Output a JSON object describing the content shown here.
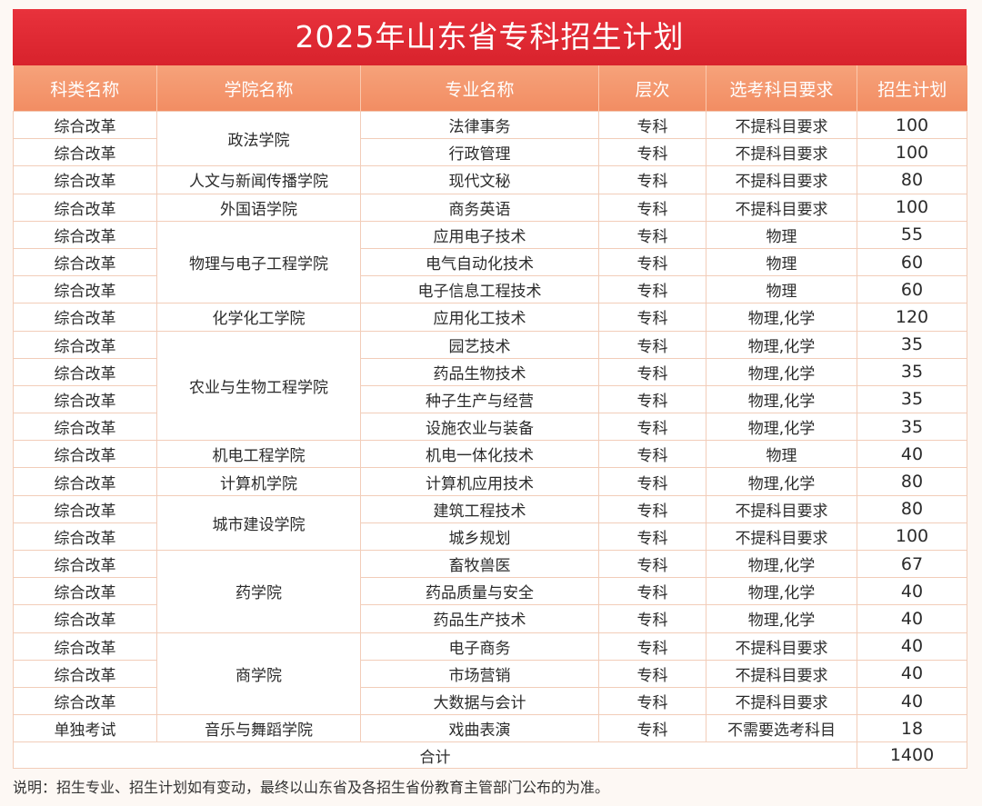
{
  "title": "2025年山东省专科招生计划",
  "headers": [
    "科类名称",
    "学院名称",
    "专业名称",
    "层次",
    "选考科目要求",
    "招生计划"
  ],
  "rows": [
    {
      "category": "综合改革",
      "college": "政法学院",
      "major": "法律事务",
      "level": "专科",
      "requirement": "不提科目要求",
      "plan": "100"
    },
    {
      "category": "综合改革",
      "college": "政法学院",
      "major": "行政管理",
      "level": "专科",
      "requirement": "不提科目要求",
      "plan": "100"
    },
    {
      "category": "综合改革",
      "college": "人文与新闻传播学院",
      "major": "现代文秘",
      "level": "专科",
      "requirement": "不提科目要求",
      "plan": "80"
    },
    {
      "category": "综合改革",
      "college": "外国语学院",
      "major": "商务英语",
      "level": "专科",
      "requirement": "不提科目要求",
      "plan": "100"
    },
    {
      "category": "综合改革",
      "college": "物理与电子工程学院",
      "major": "应用电子技术",
      "level": "专科",
      "requirement": "物理",
      "plan": "55"
    },
    {
      "category": "综合改革",
      "college": "物理与电子工程学院",
      "major": "电气自动化技术",
      "level": "专科",
      "requirement": "物理",
      "plan": "60"
    },
    {
      "category": "综合改革",
      "college": "物理与电子工程学院",
      "major": "电子信息工程技术",
      "level": "专科",
      "requirement": "物理",
      "plan": "60"
    },
    {
      "category": "综合改革",
      "college": "化学化工学院",
      "major": "应用化工技术",
      "level": "专科",
      "requirement": "物理,化学",
      "plan": "120"
    },
    {
      "category": "综合改革",
      "college": "农业与生物工程学院",
      "major": "园艺技术",
      "level": "专科",
      "requirement": "物理,化学",
      "plan": "35"
    },
    {
      "category": "综合改革",
      "college": "农业与生物工程学院",
      "major": "药品生物技术",
      "level": "专科",
      "requirement": "物理,化学",
      "plan": "35"
    },
    {
      "category": "综合改革",
      "college": "农业与生物工程学院",
      "major": "种子生产与经营",
      "level": "专科",
      "requirement": "物理,化学",
      "plan": "35"
    },
    {
      "category": "综合改革",
      "college": "农业与生物工程学院",
      "major": "设施农业与装备",
      "level": "专科",
      "requirement": "物理,化学",
      "plan": "35"
    },
    {
      "category": "综合改革",
      "college": "机电工程学院",
      "major": "机电一体化技术",
      "level": "专科",
      "requirement": "物理",
      "plan": "40"
    },
    {
      "category": "综合改革",
      "college": "计算机学院",
      "major": "计算机应用技术",
      "level": "专科",
      "requirement": "物理,化学",
      "plan": "80"
    },
    {
      "category": "综合改革",
      "college": "城市建设学院",
      "major": "建筑工程技术",
      "level": "专科",
      "requirement": "不提科目要求",
      "plan": "80"
    },
    {
      "category": "综合改革",
      "college": "城市建设学院",
      "major": "城乡规划",
      "level": "专科",
      "requirement": "不提科目要求",
      "plan": "100"
    },
    {
      "category": "综合改革",
      "college": "药学院",
      "major": "畜牧兽医",
      "level": "专科",
      "requirement": "物理,化学",
      "plan": "67"
    },
    {
      "category": "综合改革",
      "college": "药学院",
      "major": "药品质量与安全",
      "level": "专科",
      "requirement": "物理,化学",
      "plan": "40"
    },
    {
      "category": "综合改革",
      "college": "药学院",
      "major": "药品生产技术",
      "level": "专科",
      "requirement": "物理,化学",
      "plan": "40"
    },
    {
      "category": "综合改革",
      "college": "商学院",
      "major": "电子商务",
      "level": "专科",
      "requirement": "不提科目要求",
      "plan": "40"
    },
    {
      "category": "综合改革",
      "college": "商学院",
      "major": "市场营销",
      "level": "专科",
      "requirement": "不提科目要求",
      "plan": "40"
    },
    {
      "category": "综合改革",
      "college": "商学院",
      "major": "大数据与会计",
      "level": "专科",
      "requirement": "不提科目要求",
      "plan": "40"
    },
    {
      "category": "单独考试",
      "college": "音乐与舞蹈学院",
      "major": "戏曲表演",
      "level": "专科",
      "requirement": "不需要选考科目",
      "plan": "18"
    }
  ],
  "total": {
    "label": "合计",
    "value": "1400"
  },
  "note": "说明：招生专业、招生计划如有变动，最终以山东省及各招生省份教育主管部门公布的为准。",
  "colors": {
    "title_bg": "#d8222c",
    "header_bg": "#f28d63",
    "border": "#f2cdb9"
  }
}
